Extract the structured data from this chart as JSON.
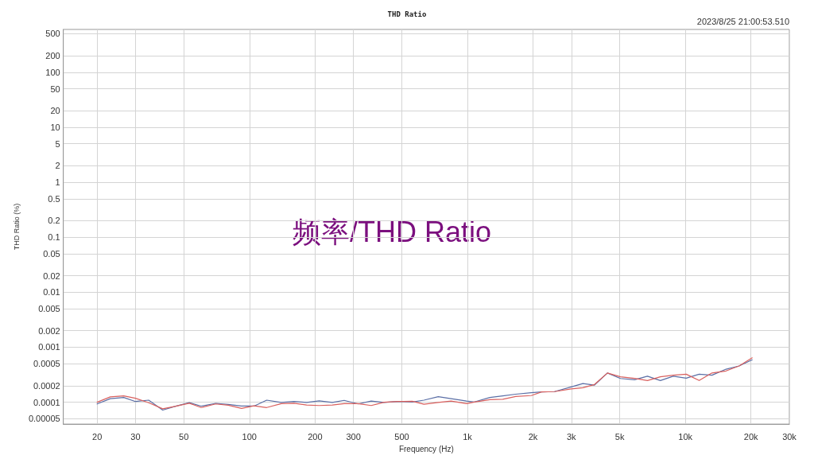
{
  "chart_data": {
    "type": "line",
    "title": "THD Ratio",
    "xlabel": "Frequency (Hz)",
    "ylabel": "THD Ratio (%)",
    "annotations": [
      "2023/8/25 21:00:53.510",
      "频率/THD Ratio"
    ],
    "log": "xy",
    "grid": true,
    "marker": "none",
    "line_style": "solid",
    "xlim": [
      14,
      30000
    ],
    "xticks": [
      20,
      30,
      50,
      100,
      200,
      300,
      500,
      {
        "value": 1000,
        "label": "1k"
      },
      {
        "value": 2000,
        "label": "2k"
      },
      {
        "value": 3000,
        "label": "3k"
      },
      {
        "value": 5000,
        "label": "5k"
      },
      {
        "value": 10000,
        "label": "10k"
      },
      {
        "value": 20000,
        "label": "20k"
      },
      {
        "value": 30000,
        "label": "30k"
      }
    ],
    "ylim": [
      4e-05,
      600
    ],
    "yticks": [
      500,
      200,
      100,
      50,
      20,
      10,
      5,
      2,
      1,
      0.5,
      0.2,
      0.1,
      0.05,
      0.02,
      0.01,
      0.005,
      0.002,
      0.001,
      0.0005,
      0.0002,
      0.0001,
      {
        "value": 5e-05,
        "label": "0.00005"
      }
    ],
    "x": [
      20,
      23,
      26.5,
      30,
      34.5,
      40,
      45.5,
      53,
      60,
      70,
      80,
      92,
      105,
      120,
      140,
      160,
      183,
      209,
      240,
      272,
      315,
      362,
      415,
      481,
      559,
      632,
      735,
      842,
      992,
      1077,
      1268,
      1454,
      1666,
      1963,
      2190,
      2510,
      2993,
      3387,
      3829,
      4390,
      5036,
      5845,
      6700,
      7680,
      8800,
      10090,
      11570,
      13250,
      15370,
      17640,
      20260
    ],
    "series": [
      {
        "color": "#5b6fa6",
        "values": [
          9.3e-05,
          0.000116,
          0.000122,
          0.000103,
          0.000109,
          7.2e-05,
          8.4e-05,
          9.8e-05,
          8.5e-05,
          9.5e-05,
          9.1e-05,
          8.5e-05,
          8.5e-05,
          0.000109,
          9.9e-05,
          0.000103,
          9.9e-05,
          0.000106,
          9.9e-05,
          0.000108,
          9.3e-05,
          0.000105,
          9.9e-05,
          0.000103,
          0.000101,
          0.000109,
          0.000126,
          0.000116,
          0.000105,
          0.000101,
          0.000122,
          0.00013,
          0.00014,
          0.000149,
          0.000154,
          0.000156,
          0.00019,
          0.000218,
          0.000205,
          0.00034,
          0.00027,
          0.000256,
          0.000297,
          0.000248,
          0.000297,
          0.000274,
          0.000323,
          0.00031,
          0.000399,
          0.000457,
          0.00059
        ]
      },
      {
        "color": "#d9605e",
        "values": [
          0.0001,
          0.000125,
          0.00013,
          0.000118,
          9.8e-05,
          7.6e-05,
          8.4e-05,
          9.6e-05,
          8e-05,
          9.3e-05,
          8.8e-05,
          7.7e-05,
          8.6e-05,
          8e-05,
          9.4e-05,
          9.6e-05,
          8.9e-05,
          8.7e-05,
          8.9e-05,
          9.4e-05,
          9.4e-05,
          8.7e-05,
          0.0001,
          0.000103,
          0.000104,
          9.2e-05,
          9.9e-05,
          0.000105,
          9.4e-05,
          0.000101,
          0.000111,
          0.000113,
          0.000127,
          0.000132,
          0.000154,
          0.000156,
          0.000175,
          0.000183,
          0.00021,
          0.00034,
          0.00029,
          0.000272,
          0.000248,
          0.00029,
          0.00031,
          0.000323,
          0.000248,
          0.00034,
          0.00037,
          0.000457,
          0.00064
        ]
      }
    ]
  }
}
